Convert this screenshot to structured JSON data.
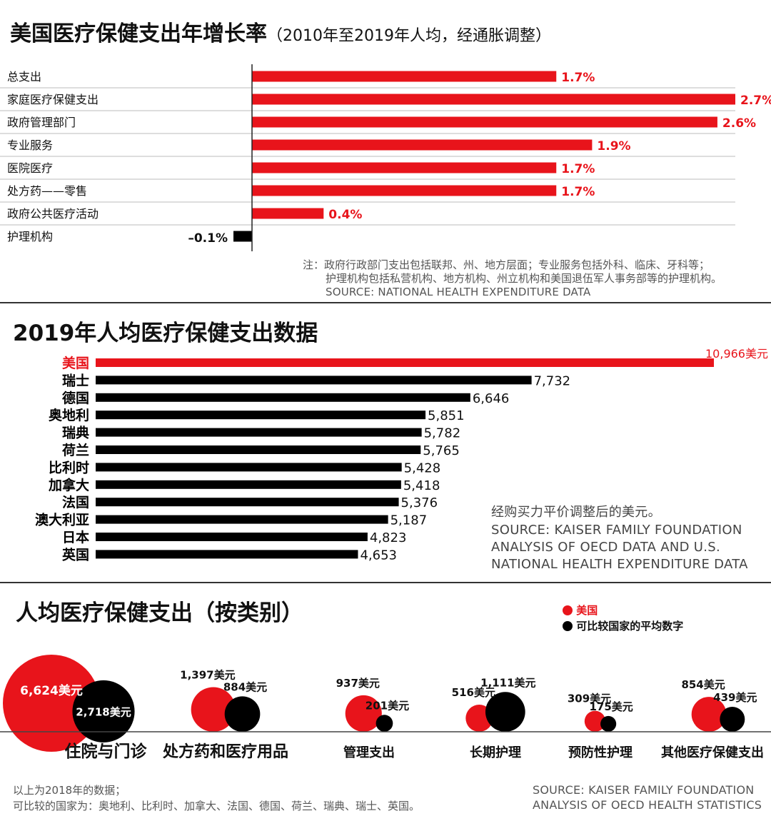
{
  "section1": {
    "title": "美国医疗保健支出年增长率",
    "subtitle": "（2010年至2019年人均，经通胀调整）",
    "note_lines": [
      "注：政府行政部门支出包括联邦、州、地方层面；专业服务包括外科、临床、牙科等；",
      "护理机构包括私营机构、地方机构、州立机构和美国退伍军人事务部等的护理机构。"
    ],
    "source": "SOURCE: NATIONAL HEALTH EXPENDITURE DATA"
  },
  "section2": {
    "title": "2019年人均医疗保健支出数据",
    "note": "经购买力平价调整后的美元。",
    "source_lines": [
      "SOURCE: KAISER FAMILY FOUNDATION",
      "ANALYSIS OF OECD DATA AND U.S.",
      "NATIONAL HEALTH EXPENDITURE DATA"
    ]
  },
  "section3": {
    "title": "人均医疗保健支出（按类别）",
    "legend": [
      {
        "label": "美国",
        "color": "#e8141b"
      },
      {
        "label": "可比较国家的平均数字",
        "color": "#000000"
      }
    ],
    "footnote_lines": [
      "以上为2018年的数据；",
      "可比较的国家为：奥地利、比利时、加拿大、法国、德国、荷兰、瑞典、瑞士、英国。"
    ],
    "source_lines": [
      "SOURCE: KAISER FAMILY FOUNDATION",
      "ANALYSIS OF OECD HEALTH STATISTICS"
    ]
  },
  "colors": {
    "accent": "#e8141b",
    "dark": "#000000",
    "gridline": "#bbbbbb"
  },
  "chart_data": [
    {
      "type": "bar",
      "orientation": "horizontal",
      "title": "美国医疗保健支出年增长率",
      "subtitle": "（2010年至2019年人均，经通胀调整）",
      "unit": "%",
      "categories": [
        "总支出",
        "家庭医疗保健支出",
        "政府管理部门",
        "专业服务",
        "医院医疗",
        "处方药——零售",
        "政府公共医疗活动",
        "护理机构"
      ],
      "values": [
        1.7,
        2.7,
        2.6,
        1.9,
        1.7,
        1.7,
        0.4,
        -0.1
      ],
      "labels": [
        "1.7%",
        "2.7%",
        "2.6%",
        "1.9%",
        "1.7%",
        "1.7%",
        "0.4%",
        "–0.1%"
      ],
      "xlim": [
        -0.1,
        2.7
      ]
    },
    {
      "type": "bar",
      "orientation": "horizontal",
      "title": "2019年人均医疗保健支出数据",
      "categories": [
        "美国",
        "瑞士",
        "德国",
        "奥地利",
        "瑞典",
        "荷兰",
        "比利时",
        "加拿大",
        "法国",
        "澳大利亚",
        "日本",
        "英国"
      ],
      "values": [
        10966,
        7732,
        6646,
        5851,
        5782,
        5765,
        5428,
        5418,
        5376,
        5187,
        4823,
        4653
      ],
      "labels": [
        "10,966美元",
        "7,732",
        "6,646",
        "5,851",
        "5,782",
        "5,765",
        "5,428",
        "5,418",
        "5,376",
        "5,187",
        "4,823",
        "4,653"
      ],
      "highlight": "美国",
      "xlim": [
        0,
        10966
      ]
    },
    {
      "type": "bubble",
      "title": "人均医疗保健支出（按类别）",
      "categories": [
        "住院与门诊",
        "处方药和医疗用品",
        "管理支出",
        "长期护理",
        "预防性护理",
        "其他医疗保健支出"
      ],
      "series": [
        {
          "name": "美国",
          "values": [
            6624,
            1397,
            937,
            516,
            309,
            854
          ],
          "labels": [
            "6,624美元",
            "1,397美元",
            "937美元",
            "516美元",
            "309美元",
            "854美元"
          ]
        },
        {
          "name": "可比较国家的平均数字",
          "values": [
            2718,
            884,
            201,
            1111,
            175,
            439
          ],
          "labels": [
            "2,718美元",
            "884美元",
            "201美元",
            "1,111美元",
            "175美元",
            "439美元"
          ]
        }
      ]
    }
  ]
}
